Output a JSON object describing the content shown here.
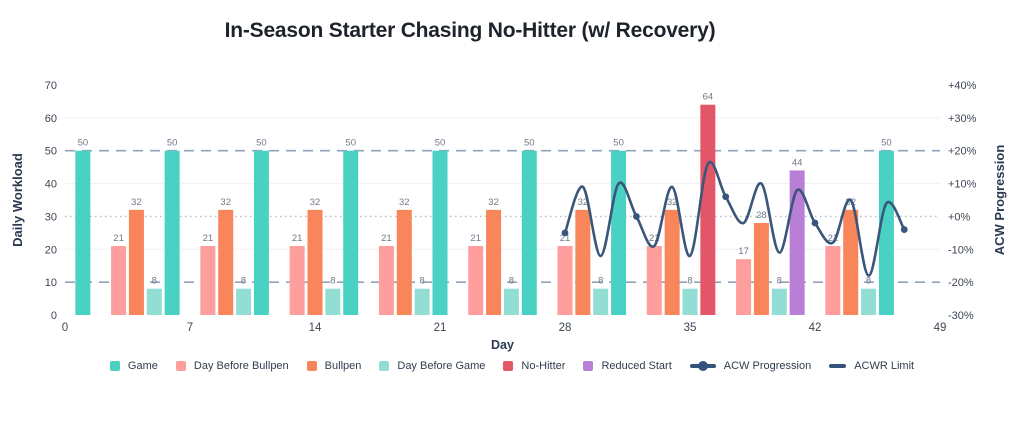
{
  "chart_data": {
    "type": "bar",
    "title": "In-Season Starter Chasing No-Hitter (w/ Recovery)",
    "xlabel": "Day",
    "ylabel_left": "Daily Workload",
    "ylabel_right": "ACW Progression",
    "xlim": [
      0,
      49
    ],
    "x_ticks": [
      0,
      7,
      14,
      21,
      28,
      35,
      42,
      49
    ],
    "ylim_left": [
      0,
      70
    ],
    "y_ticks_left": [
      0,
      10,
      20,
      30,
      40,
      50,
      60,
      70
    ],
    "ylim_right_pct": [
      -30,
      40
    ],
    "y_ticks_right": [
      {
        "pct": 40,
        "label": "+40%"
      },
      {
        "pct": 30,
        "label": "+30%"
      },
      {
        "pct": 20,
        "label": "+20%"
      },
      {
        "pct": 10,
        "label": "+10%"
      },
      {
        "pct": 0,
        "label": "+0%"
      },
      {
        "pct": -10,
        "label": "-10%"
      },
      {
        "pct": -20,
        "label": "-20%"
      },
      {
        "pct": -30,
        "label": "-30%"
      }
    ],
    "grid": {
      "faint_values": [
        20,
        40,
        60
      ],
      "faint_color": "#edf0f4"
    },
    "bar_series": [
      {
        "name": "Game",
        "color": "#49d2c4",
        "points": [
          [
            1,
            50
          ],
          [
            6,
            50
          ],
          [
            11,
            50
          ],
          [
            16,
            50
          ],
          [
            21,
            50
          ],
          [
            26,
            50
          ],
          [
            31,
            50
          ],
          [
            46,
            50
          ]
        ]
      },
      {
        "name": "Day Before Bullpen",
        "color": "#ff9f9d",
        "points": [
          [
            3,
            21
          ],
          [
            8,
            21
          ],
          [
            13,
            21
          ],
          [
            18,
            21
          ],
          [
            23,
            21
          ],
          [
            28,
            21
          ],
          [
            33,
            21
          ],
          [
            38,
            17
          ],
          [
            43,
            21
          ]
        ]
      },
      {
        "name": "Bullpen",
        "color": "#f9855b",
        "points": [
          [
            4,
            32
          ],
          [
            9,
            32
          ],
          [
            14,
            32
          ],
          [
            19,
            32
          ],
          [
            24,
            32
          ],
          [
            29,
            32
          ],
          [
            34,
            32
          ],
          [
            39,
            28
          ],
          [
            44,
            32
          ]
        ]
      },
      {
        "name": "Day Before Game",
        "color": "#92ded5",
        "points": [
          [
            5,
            8
          ],
          [
            10,
            8
          ],
          [
            15,
            8
          ],
          [
            20,
            8
          ],
          [
            25,
            8
          ],
          [
            30,
            8
          ],
          [
            35,
            8
          ],
          [
            40,
            8
          ],
          [
            45,
            8
          ]
        ]
      },
      {
        "name": "No-Hitter",
        "color": "#e35667",
        "points": [
          [
            36,
            64
          ]
        ]
      },
      {
        "name": "Reduced Start",
        "color": "#b97fd6",
        "points": [
          [
            41,
            44
          ]
        ]
      }
    ],
    "line_series": {
      "name": "ACW Progression",
      "color": "#3a567a",
      "points_day_pct": [
        [
          28,
          -5
        ],
        [
          29,
          9
        ],
        [
          30,
          -12
        ],
        [
          31,
          10
        ],
        [
          32,
          0
        ],
        [
          33,
          -9
        ],
        [
          34,
          9
        ],
        [
          35,
          -12
        ],
        [
          36,
          16
        ],
        [
          37,
          6
        ],
        [
          38,
          -2
        ],
        [
          39,
          10
        ],
        [
          40,
          -11
        ],
        [
          41,
          8
        ],
        [
          42,
          -2
        ],
        [
          43,
          -8
        ],
        [
          44,
          5
        ],
        [
          45,
          -18
        ],
        [
          46,
          4
        ],
        [
          47,
          -4
        ]
      ],
      "marker_days": [
        28,
        32,
        37,
        42,
        47
      ]
    },
    "limit_lines": {
      "name": "ACWR Limit",
      "color": "#92a2b9",
      "style": "dashed",
      "values_pct": [
        20,
        -20
      ]
    },
    "zero_line": {
      "value_pct": 0,
      "style": "dotted",
      "color": "#b0bac7"
    },
    "legend": [
      {
        "label": "Game",
        "swatch": "square",
        "color": "#49d2c4"
      },
      {
        "label": "Day Before Bullpen",
        "swatch": "square",
        "color": "#ff9f9d"
      },
      {
        "label": "Bullpen",
        "swatch": "square",
        "color": "#f9855b"
      },
      {
        "label": "Day Before Game",
        "swatch": "square",
        "color": "#92ded5"
      },
      {
        "label": "No-Hitter",
        "swatch": "square",
        "color": "#e35667"
      },
      {
        "label": "Reduced Start",
        "swatch": "square",
        "color": "#b97fd6"
      },
      {
        "label": "ACW Progression",
        "swatch": "line-dot",
        "color": "#35527a"
      },
      {
        "label": "ACWR Limit",
        "swatch": "line",
        "color": "#35527a"
      }
    ],
    "text_colors": {
      "tick": "#3d4655",
      "axis_title": "#2b3850",
      "value_label": "#6f7a89",
      "title": "#1d222b"
    }
  }
}
